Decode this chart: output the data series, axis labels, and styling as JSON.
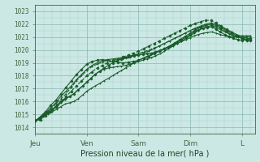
{
  "bg_color": "#cce8e4",
  "grid_color_minor": "#aacfc8",
  "grid_color_major": "#88b8b0",
  "line_color": "#1a5c2a",
  "ylabel": "Pression niveau de la mer( hPa )",
  "ylim": [
    1013.5,
    1023.5
  ],
  "yticks": [
    1014,
    1015,
    1016,
    1017,
    1018,
    1019,
    1020,
    1021,
    1022,
    1023
  ],
  "xtick_labels": [
    "Jeu",
    "Ven",
    "Sam",
    "Dim",
    "L"
  ],
  "xtick_positions": [
    0,
    1,
    2,
    3,
    4
  ],
  "xlim": [
    0,
    4.25
  ],
  "series": [
    {
      "x": [
        0.0,
        0.08,
        0.16,
        0.25,
        0.33,
        0.42,
        0.5,
        0.58,
        0.67,
        0.75,
        0.83,
        0.92,
        1.0,
        1.08,
        1.16,
        1.25,
        1.33,
        1.42,
        1.5,
        1.58,
        1.67,
        1.75,
        1.83,
        1.92,
        2.0,
        2.08,
        2.16,
        2.25,
        2.33,
        2.42,
        2.5,
        2.58,
        2.67,
        2.75,
        2.83,
        2.92,
        3.0,
        3.08,
        3.16,
        3.25,
        3.33,
        3.42,
        3.5,
        3.58,
        3.67,
        3.75,
        3.83,
        3.92,
        4.0,
        4.08,
        4.16
      ],
      "y": [
        1014.5,
        1014.6,
        1014.8,
        1015.0,
        1015.2,
        1015.4,
        1015.6,
        1015.8,
        1015.9,
        1016.0,
        1016.2,
        1016.5,
        1016.8,
        1017.0,
        1017.2,
        1017.4,
        1017.6,
        1017.8,
        1018.0,
        1018.2,
        1018.4,
        1018.6,
        1018.8,
        1019.0,
        1019.2,
        1019.35,
        1019.5,
        1019.65,
        1019.8,
        1019.95,
        1020.1,
        1020.2,
        1020.35,
        1020.5,
        1020.65,
        1020.8,
        1020.95,
        1021.1,
        1021.2,
        1021.3,
        1021.35,
        1021.4,
        1021.3,
        1021.2,
        1021.1,
        1021.0,
        1021.0,
        1021.05,
        1021.1,
        1021.1,
        1021.1
      ],
      "dashed": false,
      "marker": "+"
    },
    {
      "x": [
        0.0,
        0.08,
        0.16,
        0.25,
        0.33,
        0.42,
        0.5,
        0.58,
        0.67,
        0.75,
        0.83,
        0.92,
        1.0,
        1.08,
        1.16,
        1.25,
        1.33,
        1.42,
        1.5,
        1.58,
        1.67,
        1.75,
        1.83,
        1.92,
        2.0,
        2.08,
        2.16,
        2.25,
        2.33,
        2.42,
        2.5,
        2.58,
        2.67,
        2.75,
        2.83,
        2.92,
        3.0,
        3.08,
        3.16,
        3.25,
        3.33,
        3.42,
        3.5,
        3.58,
        3.67,
        3.75,
        3.83,
        3.92,
        4.0,
        4.08,
        4.16
      ],
      "y": [
        1014.5,
        1014.7,
        1015.0,
        1015.2,
        1015.4,
        1015.7,
        1016.0,
        1016.2,
        1016.4,
        1016.6,
        1016.9,
        1017.2,
        1017.5,
        1017.8,
        1018.1,
        1018.35,
        1018.6,
        1018.8,
        1019.0,
        1019.15,
        1019.3,
        1019.4,
        1019.5,
        1019.55,
        1019.6,
        1019.65,
        1019.7,
        1019.75,
        1019.85,
        1019.95,
        1020.1,
        1020.25,
        1020.4,
        1020.6,
        1020.8,
        1021.0,
        1021.2,
        1021.4,
        1021.55,
        1021.7,
        1021.75,
        1021.8,
        1021.6,
        1021.4,
        1021.2,
        1021.05,
        1020.9,
        1020.8,
        1020.75,
        1020.8,
        1020.9
      ],
      "dashed": false,
      "marker": "D"
    },
    {
      "x": [
        0.0,
        0.08,
        0.16,
        0.25,
        0.33,
        0.42,
        0.5,
        0.58,
        0.67,
        0.75,
        0.83,
        0.92,
        1.0,
        1.08,
        1.16,
        1.25,
        1.33,
        1.42,
        1.5,
        1.58,
        1.67,
        1.75,
        1.83,
        1.92,
        2.0,
        2.08,
        2.16,
        2.25,
        2.33,
        2.42,
        2.5,
        2.58,
        2.67,
        2.75,
        2.83,
        2.92,
        3.0,
        3.08,
        3.16,
        3.25,
        3.33,
        3.42,
        3.5,
        3.58,
        3.67,
        3.75,
        3.83,
        3.92,
        4.0,
        4.08,
        4.16
      ],
      "y": [
        1014.5,
        1014.65,
        1014.9,
        1015.1,
        1015.3,
        1015.6,
        1015.9,
        1016.15,
        1016.4,
        1016.6,
        1016.9,
        1017.2,
        1017.5,
        1017.8,
        1018.1,
        1018.35,
        1018.5,
        1018.6,
        1018.65,
        1018.7,
        1018.75,
        1018.8,
        1018.9,
        1019.0,
        1019.1,
        1019.2,
        1019.3,
        1019.4,
        1019.55,
        1019.7,
        1019.9,
        1020.1,
        1020.3,
        1020.5,
        1020.7,
        1020.9,
        1021.1,
        1021.3,
        1021.5,
        1021.7,
        1021.8,
        1021.9,
        1021.75,
        1021.6,
        1021.4,
        1021.25,
        1021.1,
        1021.0,
        1020.95,
        1021.0,
        1021.05
      ],
      "dashed": false,
      "marker": "+"
    },
    {
      "x": [
        0.0,
        0.1,
        0.2,
        0.3,
        0.4,
        0.5,
        0.6,
        0.7,
        0.8,
        0.9,
        1.0,
        1.1,
        1.2,
        1.3,
        1.4,
        1.5,
        1.6,
        1.7,
        1.8,
        1.9,
        2.0,
        2.1,
        2.2,
        2.3,
        2.4,
        2.5,
        2.6,
        2.7,
        2.8,
        2.9,
        3.0,
        3.1,
        3.2,
        3.3,
        3.4,
        3.5,
        3.6,
        3.7,
        3.8,
        3.9,
        4.0,
        4.1,
        4.16
      ],
      "y": [
        1014.5,
        1014.7,
        1015.1,
        1015.5,
        1015.9,
        1016.4,
        1016.8,
        1017.2,
        1017.7,
        1018.1,
        1018.5,
        1018.8,
        1019.0,
        1019.15,
        1019.25,
        1019.3,
        1019.35,
        1019.4,
        1019.5,
        1019.6,
        1019.7,
        1019.8,
        1019.9,
        1020.1,
        1020.3,
        1020.5,
        1020.7,
        1020.9,
        1021.1,
        1021.3,
        1021.5,
        1021.7,
        1021.85,
        1022.0,
        1022.1,
        1022.0,
        1021.8,
        1021.6,
        1021.4,
        1021.2,
        1021.05,
        1020.9,
        1020.9
      ],
      "dashed": false,
      "marker": "+"
    },
    {
      "x": [
        0.0,
        0.1,
        0.2,
        0.3,
        0.4,
        0.5,
        0.6,
        0.7,
        0.8,
        0.9,
        1.0,
        1.1,
        1.2,
        1.3,
        1.4,
        1.5,
        1.6,
        1.7,
        1.8,
        1.9,
        2.0,
        2.1,
        2.2,
        2.3,
        2.4,
        2.5,
        2.6,
        2.7,
        2.8,
        2.9,
        3.0,
        3.1,
        3.2,
        3.3,
        3.4,
        3.5,
        3.6,
        3.7,
        3.8,
        3.9,
        4.0,
        4.1,
        4.16
      ],
      "y": [
        1014.5,
        1014.8,
        1015.2,
        1015.7,
        1016.1,
        1016.6,
        1017.1,
        1017.6,
        1018.1,
        1018.5,
        1018.9,
        1019.1,
        1019.2,
        1019.25,
        1019.2,
        1019.1,
        1019.05,
        1019.0,
        1019.05,
        1019.1,
        1019.2,
        1019.35,
        1019.5,
        1019.7,
        1019.9,
        1020.1,
        1020.3,
        1020.55,
        1020.8,
        1021.05,
        1021.3,
        1021.55,
        1021.75,
        1021.9,
        1022.0,
        1021.9,
        1021.7,
        1021.5,
        1021.3,
        1021.1,
        1020.95,
        1020.8,
        1020.8
      ],
      "dashed": false,
      "marker": "D"
    },
    {
      "x": [
        0.0,
        0.1,
        0.2,
        0.3,
        0.4,
        0.5,
        0.6,
        0.7,
        0.8,
        0.9,
        1.0,
        1.1,
        1.2,
        1.3,
        1.4,
        1.5,
        1.6,
        1.7,
        1.8,
        1.9,
        2.0,
        2.1,
        2.2,
        2.3,
        2.4,
        2.5,
        2.6,
        2.7,
        2.8,
        2.9,
        3.0,
        3.1,
        3.2,
        3.3,
        3.4,
        3.5,
        3.6,
        3.7,
        3.8,
        3.9,
        4.0,
        4.1,
        4.16
      ],
      "y": [
        1014.5,
        1014.7,
        1015.0,
        1015.4,
        1015.8,
        1016.2,
        1016.6,
        1017.1,
        1017.6,
        1018.0,
        1018.4,
        1018.7,
        1018.9,
        1019.05,
        1019.15,
        1019.2,
        1019.25,
        1019.3,
        1019.4,
        1019.55,
        1019.7,
        1019.85,
        1020.0,
        1020.15,
        1020.3,
        1020.5,
        1020.7,
        1020.9,
        1021.1,
        1021.3,
        1021.5,
        1021.65,
        1021.8,
        1021.9,
        1022.0,
        1021.85,
        1021.65,
        1021.4,
        1021.2,
        1021.0,
        1020.85,
        1020.8,
        1020.85
      ],
      "dashed": true,
      "marker": "+"
    },
    {
      "x": [
        0.0,
        0.1,
        0.2,
        0.3,
        0.4,
        0.5,
        0.6,
        0.7,
        0.8,
        0.9,
        1.0,
        1.1,
        1.2,
        1.3,
        1.4,
        1.5,
        1.6,
        1.7,
        1.8,
        1.9,
        2.0,
        2.1,
        2.2,
        2.3,
        2.4,
        2.5,
        2.6,
        2.7,
        2.8,
        2.9,
        3.0,
        3.1,
        3.2,
        3.3,
        3.4,
        3.5,
        3.6,
        3.7,
        3.8,
        3.9,
        4.0,
        4.1,
        4.16
      ],
      "y": [
        1014.5,
        1014.6,
        1014.9,
        1015.2,
        1015.6,
        1016.0,
        1016.4,
        1016.8,
        1017.2,
        1017.6,
        1018.0,
        1018.3,
        1018.6,
        1018.8,
        1019.0,
        1019.15,
        1019.3,
        1019.45,
        1019.6,
        1019.75,
        1019.9,
        1020.1,
        1020.3,
        1020.5,
        1020.7,
        1020.9,
        1021.1,
        1021.3,
        1021.5,
        1021.7,
        1021.9,
        1022.05,
        1022.2,
        1022.3,
        1022.3,
        1022.1,
        1021.85,
        1021.6,
        1021.35,
        1021.1,
        1020.9,
        1020.75,
        1020.75
      ],
      "dashed": true,
      "marker": "D"
    }
  ]
}
